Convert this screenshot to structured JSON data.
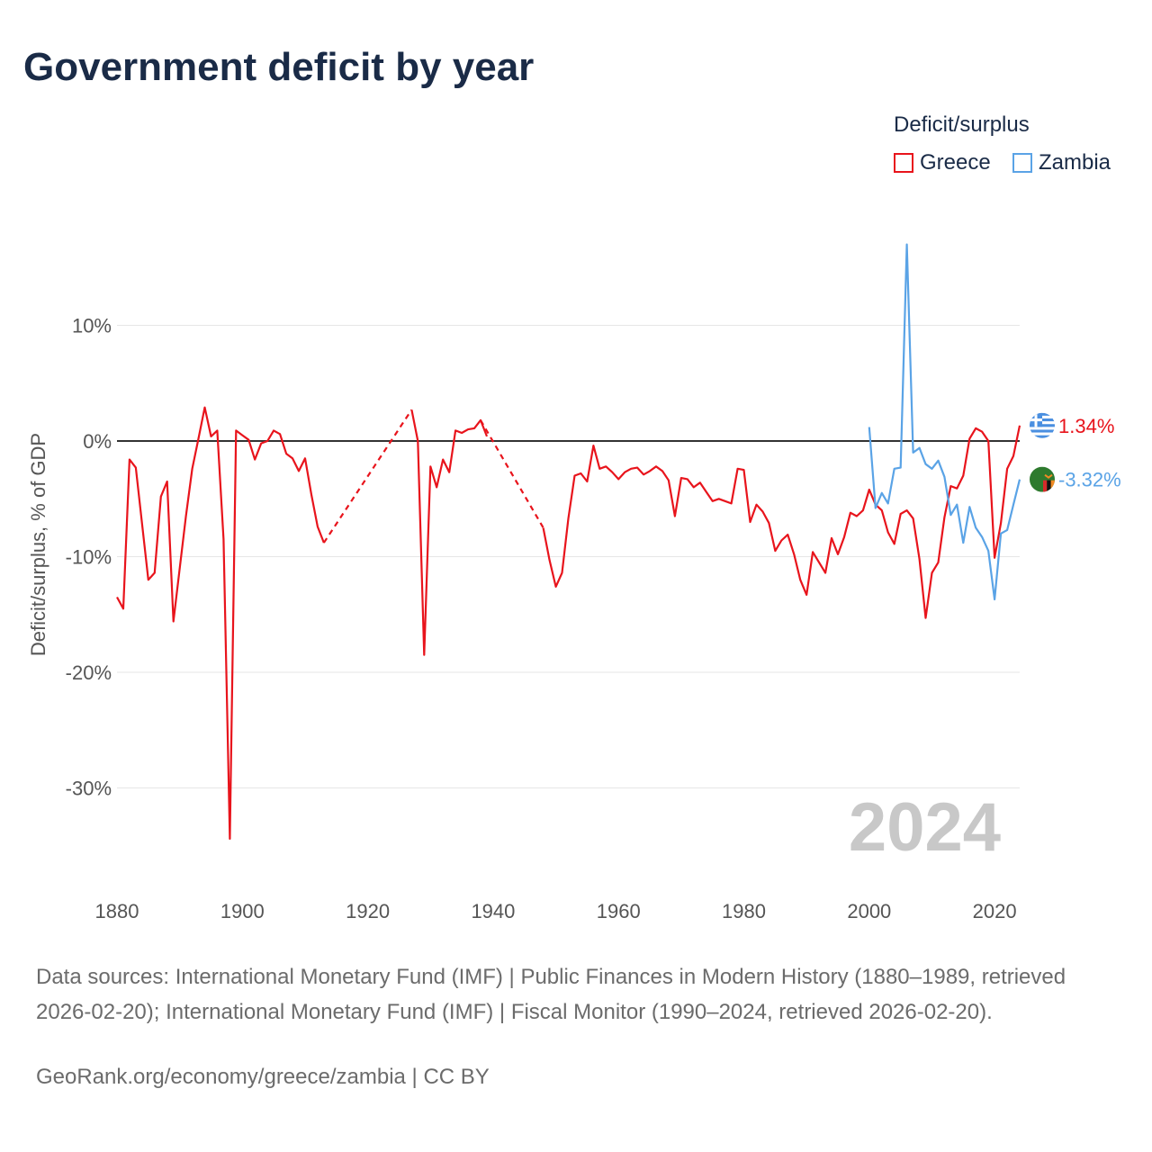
{
  "title": "Government deficit by year",
  "legend": {
    "title": "Deficit/surplus",
    "items": [
      {
        "name": "Greece",
        "color": "#e8141c"
      },
      {
        "name": "Zambia",
        "color": "#5aa3e6"
      }
    ]
  },
  "source_text": "Data sources: International Monetary Fund (IMF) | Public Finances in Modern History (1880–1989, retrieved 2026-02-20); International Monetary Fund (IMF) | Fiscal Monitor (1990–2024, retrieved 2026-02-20).",
  "credit_text": "GeoRank.org/economy/greece/zambia | CC BY",
  "chart_data": {
    "type": "line",
    "title": "Government deficit by year",
    "ylabel": "Deficit/surplus, % of GDP",
    "xlabel": "",
    "xlim": [
      1880,
      2024
    ],
    "ylim": [
      -38,
      20
    ],
    "xticks": [
      1880,
      1900,
      1920,
      1940,
      1960,
      1980,
      2000,
      2020
    ],
    "yticks": [
      {
        "value": 10,
        "label": "10%"
      },
      {
        "value": 0,
        "label": "0%"
      },
      {
        "value": -10,
        "label": "-10%"
      },
      {
        "value": -20,
        "label": "-20%"
      },
      {
        "value": -30,
        "label": "-30%"
      }
    ],
    "year_label": "2024",
    "series": [
      {
        "name": "Greece",
        "color": "#e8141c",
        "end_label": "1.34%",
        "dashed_gaps": [
          [
            1913,
            1927
          ],
          [
            1938,
            1948
          ]
        ],
        "points": [
          [
            1880,
            -13.5
          ],
          [
            1881,
            -14.5
          ],
          [
            1882,
            -1.6
          ],
          [
            1883,
            -2.3
          ],
          [
            1884,
            -7.2
          ],
          [
            1885,
            -12.0
          ],
          [
            1886,
            -11.4
          ],
          [
            1887,
            -4.8
          ],
          [
            1888,
            -3.5
          ],
          [
            1889,
            -15.6
          ],
          [
            1890,
            -11.0
          ],
          [
            1891,
            -6.5
          ],
          [
            1892,
            -2.4
          ],
          [
            1893,
            0.2
          ],
          [
            1894,
            2.9
          ],
          [
            1895,
            0.4
          ],
          [
            1896,
            0.9
          ],
          [
            1897,
            -8.5
          ],
          [
            1898,
            -34.4
          ],
          [
            1899,
            0.9
          ],
          [
            1900,
            0.5
          ],
          [
            1901,
            0.1
          ],
          [
            1902,
            -1.6
          ],
          [
            1903,
            -0.2
          ],
          [
            1904,
            0.0
          ],
          [
            1905,
            0.9
          ],
          [
            1906,
            0.6
          ],
          [
            1907,
            -1.1
          ],
          [
            1908,
            -1.5
          ],
          [
            1909,
            -2.6
          ],
          [
            1910,
            -1.5
          ],
          [
            1911,
            -4.6
          ],
          [
            1912,
            -7.4
          ],
          [
            1913,
            -8.8
          ],
          [
            1927,
            2.7
          ],
          [
            1928,
            0.0
          ],
          [
            1929,
            -18.5
          ],
          [
            1930,
            -2.2
          ],
          [
            1931,
            -4.0
          ],
          [
            1932,
            -1.6
          ],
          [
            1933,
            -2.7
          ],
          [
            1934,
            0.9
          ],
          [
            1935,
            0.7
          ],
          [
            1936,
            1.0
          ],
          [
            1937,
            1.1
          ],
          [
            1938,
            1.8
          ],
          [
            1939,
            0.4
          ],
          [
            1948,
            -7.5
          ],
          [
            1949,
            -10.3
          ],
          [
            1950,
            -12.6
          ],
          [
            1951,
            -11.4
          ],
          [
            1952,
            -6.7
          ],
          [
            1953,
            -3.0
          ],
          [
            1954,
            -2.8
          ],
          [
            1955,
            -3.5
          ],
          [
            1956,
            -0.4
          ],
          [
            1957,
            -2.4
          ],
          [
            1958,
            -2.2
          ],
          [
            1959,
            -2.7
          ],
          [
            1960,
            -3.3
          ],
          [
            1961,
            -2.7
          ],
          [
            1962,
            -2.4
          ],
          [
            1963,
            -2.3
          ],
          [
            1964,
            -2.9
          ],
          [
            1965,
            -2.6
          ],
          [
            1966,
            -2.2
          ],
          [
            1967,
            -2.6
          ],
          [
            1968,
            -3.4
          ],
          [
            1969,
            -6.5
          ],
          [
            1970,
            -3.2
          ],
          [
            1971,
            -3.3
          ],
          [
            1972,
            -4.0
          ],
          [
            1973,
            -3.6
          ],
          [
            1974,
            -4.4
          ],
          [
            1975,
            -5.2
          ],
          [
            1976,
            -5.0
          ],
          [
            1977,
            -5.2
          ],
          [
            1978,
            -5.4
          ],
          [
            1979,
            -2.4
          ],
          [
            1980,
            -2.5
          ],
          [
            1981,
            -7.0
          ],
          [
            1982,
            -5.5
          ],
          [
            1983,
            -6.1
          ],
          [
            1984,
            -7.1
          ],
          [
            1985,
            -9.5
          ],
          [
            1986,
            -8.6
          ],
          [
            1987,
            -8.1
          ],
          [
            1988,
            -9.8
          ],
          [
            1989,
            -12.0
          ],
          [
            1990,
            -13.3
          ],
          [
            1991,
            -9.6
          ],
          [
            1992,
            -10.5
          ],
          [
            1993,
            -11.4
          ],
          [
            1994,
            -8.4
          ],
          [
            1995,
            -9.8
          ],
          [
            1996,
            -8.3
          ],
          [
            1997,
            -6.2
          ],
          [
            1998,
            -6.5
          ],
          [
            1999,
            -6.0
          ],
          [
            2000,
            -4.2
          ],
          [
            2001,
            -5.5
          ],
          [
            2002,
            -6.0
          ],
          [
            2003,
            -7.9
          ],
          [
            2004,
            -8.9
          ],
          [
            2005,
            -6.3
          ],
          [
            2006,
            -6.0
          ],
          [
            2007,
            -6.7
          ],
          [
            2008,
            -10.2
          ],
          [
            2009,
            -15.3
          ],
          [
            2010,
            -11.4
          ],
          [
            2011,
            -10.5
          ],
          [
            2012,
            -6.6
          ],
          [
            2013,
            -3.9
          ],
          [
            2014,
            -4.1
          ],
          [
            2015,
            -3.0
          ],
          [
            2016,
            0.2
          ],
          [
            2017,
            1.1
          ],
          [
            2018,
            0.8
          ],
          [
            2019,
            0.0
          ],
          [
            2020,
            -10.1
          ],
          [
            2021,
            -7.1
          ],
          [
            2022,
            -2.4
          ],
          [
            2023,
            -1.3
          ],
          [
            2024,
            1.34
          ]
        ]
      },
      {
        "name": "Zambia",
        "color": "#5aa3e6",
        "end_label": "-3.32%",
        "dashed_gaps": [],
        "points": [
          [
            2000,
            1.2
          ],
          [
            2001,
            -5.8
          ],
          [
            2002,
            -4.5
          ],
          [
            2003,
            -5.4
          ],
          [
            2004,
            -2.4
          ],
          [
            2005,
            -2.3
          ],
          [
            2006,
            17.0
          ],
          [
            2007,
            -1.0
          ],
          [
            2008,
            -0.6
          ],
          [
            2009,
            -2.0
          ],
          [
            2010,
            -2.4
          ],
          [
            2011,
            -1.7
          ],
          [
            2012,
            -3.1
          ],
          [
            2013,
            -6.4
          ],
          [
            2014,
            -5.5
          ],
          [
            2015,
            -8.8
          ],
          [
            2016,
            -5.7
          ],
          [
            2017,
            -7.5
          ],
          [
            2018,
            -8.3
          ],
          [
            2019,
            -9.5
          ],
          [
            2020,
            -13.7
          ],
          [
            2021,
            -8.0
          ],
          [
            2022,
            -7.7
          ],
          [
            2023,
            -5.5
          ],
          [
            2024,
            -3.32
          ]
        ]
      }
    ]
  }
}
